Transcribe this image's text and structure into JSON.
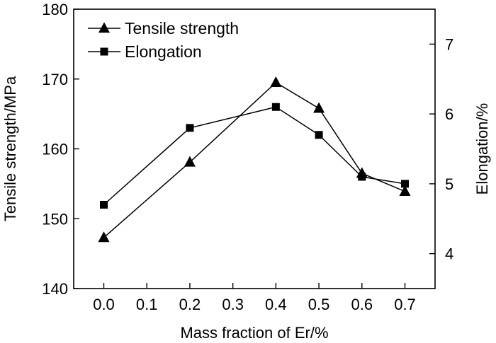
{
  "chart_data": {
    "type": "line",
    "title": "",
    "xlabel": "Mass fraction of Er/%",
    "ylabel_left": "Tensile strength/MPa",
    "ylabel_right": "Elongation/%",
    "x": [
      0.0,
      0.2,
      0.4,
      0.5,
      0.6,
      0.7
    ],
    "xticks": [
      "0.0",
      "0.1",
      "0.2",
      "0.3",
      "0.4",
      "0.5",
      "0.6",
      "0.7"
    ],
    "xlim": [
      -0.07,
      0.77
    ],
    "ylim_left": [
      140,
      180
    ],
    "ylim_right": [
      3.5,
      7.5
    ],
    "yticks_left": [
      "140",
      "150",
      "160",
      "170",
      "180"
    ],
    "yticks_right": [
      "4",
      "5",
      "6",
      "7"
    ],
    "grid": false,
    "legend_position": "top-left",
    "series": [
      {
        "name": "Tensile strength",
        "axis": "left",
        "marker": "triangle",
        "values": [
          147.3,
          158.1,
          169.5,
          165.8,
          156.5,
          153.9
        ]
      },
      {
        "name": "Elongation",
        "axis": "right",
        "marker": "square",
        "values": [
          4.7,
          5.8,
          6.1,
          5.7,
          5.1,
          5.0
        ]
      }
    ]
  }
}
